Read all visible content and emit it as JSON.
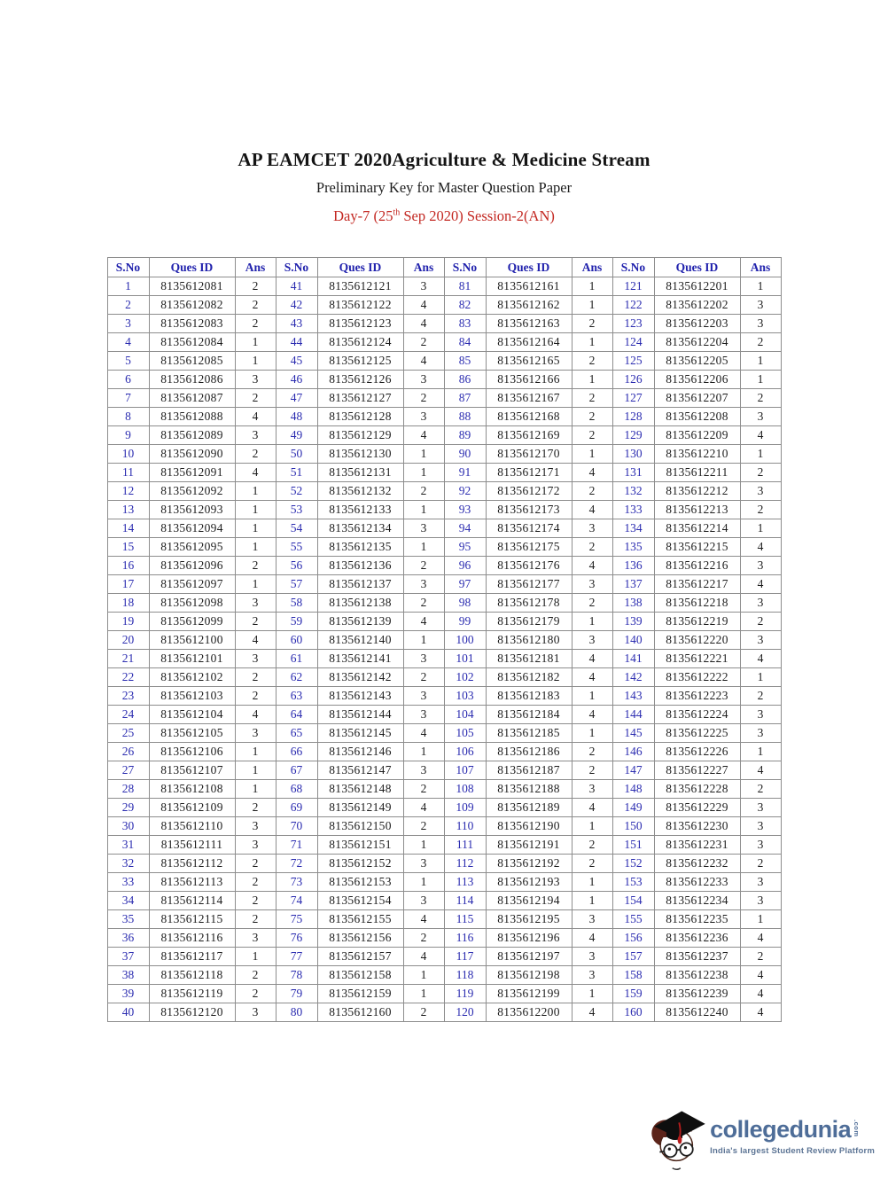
{
  "header": {
    "title": "AP EAMCET 2020Agriculture & Medicine Stream",
    "subtitle": "Preliminary Key for Master Question Paper",
    "session": {
      "pre": "Day-7 (25",
      "sup": "th",
      "post": " Sep 2020) Session-2(AN)"
    }
  },
  "colors": {
    "header_blue": "#2122ad",
    "sno_blue": "#2b2cb0",
    "session_red": "#c32822",
    "body_black": "#1d1d1d",
    "table_border_gray": "#8d8d8d",
    "logo_blue": "#4e6d98"
  },
  "table": {
    "headers": [
      "S.No",
      "Ques ID",
      "Ans"
    ],
    "rows": [
      [
        "1",
        "8135612081",
        "2",
        "41",
        "8135612121",
        "3",
        "81",
        "8135612161",
        "1",
        "121",
        "8135612201",
        "1"
      ],
      [
        "2",
        "8135612082",
        "2",
        "42",
        "8135612122",
        "4",
        "82",
        "8135612162",
        "1",
        "122",
        "8135612202",
        "3"
      ],
      [
        "3",
        "8135612083",
        "2",
        "43",
        "8135612123",
        "4",
        "83",
        "8135612163",
        "2",
        "123",
        "8135612203",
        "3"
      ],
      [
        "4",
        "8135612084",
        "1",
        "44",
        "8135612124",
        "2",
        "84",
        "8135612164",
        "1",
        "124",
        "8135612204",
        "2"
      ],
      [
        "5",
        "8135612085",
        "1",
        "45",
        "8135612125",
        "4",
        "85",
        "8135612165",
        "2",
        "125",
        "8135612205",
        "1"
      ],
      [
        "6",
        "8135612086",
        "3",
        "46",
        "8135612126",
        "3",
        "86",
        "8135612166",
        "1",
        "126",
        "8135612206",
        "1"
      ],
      [
        "7",
        "8135612087",
        "2",
        "47",
        "8135612127",
        "2",
        "87",
        "8135612167",
        "2",
        "127",
        "8135612207",
        "2"
      ],
      [
        "8",
        "8135612088",
        "4",
        "48",
        "8135612128",
        "3",
        "88",
        "8135612168",
        "2",
        "128",
        "8135612208",
        "3"
      ],
      [
        "9",
        "8135612089",
        "3",
        "49",
        "8135612129",
        "4",
        "89",
        "8135612169",
        "2",
        "129",
        "8135612209",
        "4"
      ],
      [
        "10",
        "8135612090",
        "2",
        "50",
        "8135612130",
        "1",
        "90",
        "8135612170",
        "1",
        "130",
        "8135612210",
        "1"
      ],
      [
        "11",
        "8135612091",
        "4",
        "51",
        "8135612131",
        "1",
        "91",
        "8135612171",
        "4",
        "131",
        "8135612211",
        "2"
      ],
      [
        "12",
        "8135612092",
        "1",
        "52",
        "8135612132",
        "2",
        "92",
        "8135612172",
        "2",
        "132",
        "8135612212",
        "3"
      ],
      [
        "13",
        "8135612093",
        "1",
        "53",
        "8135612133",
        "1",
        "93",
        "8135612173",
        "4",
        "133",
        "8135612213",
        "2"
      ],
      [
        "14",
        "8135612094",
        "1",
        "54",
        "8135612134",
        "3",
        "94",
        "8135612174",
        "3",
        "134",
        "8135612214",
        "1"
      ],
      [
        "15",
        "8135612095",
        "1",
        "55",
        "8135612135",
        "1",
        "95",
        "8135612175",
        "2",
        "135",
        "8135612215",
        "4"
      ],
      [
        "16",
        "8135612096",
        "2",
        "56",
        "8135612136",
        "2",
        "96",
        "8135612176",
        "4",
        "136",
        "8135612216",
        "3"
      ],
      [
        "17",
        "8135612097",
        "1",
        "57",
        "8135612137",
        "3",
        "97",
        "8135612177",
        "3",
        "137",
        "8135612217",
        "4"
      ],
      [
        "18",
        "8135612098",
        "3",
        "58",
        "8135612138",
        "2",
        "98",
        "8135612178",
        "2",
        "138",
        "8135612218",
        "3"
      ],
      [
        "19",
        "8135612099",
        "2",
        "59",
        "8135612139",
        "4",
        "99",
        "8135612179",
        "1",
        "139",
        "8135612219",
        "2"
      ],
      [
        "20",
        "8135612100",
        "4",
        "60",
        "8135612140",
        "1",
        "100",
        "8135612180",
        "3",
        "140",
        "8135612220",
        "3"
      ],
      [
        "21",
        "8135612101",
        "3",
        "61",
        "8135612141",
        "3",
        "101",
        "8135612181",
        "4",
        "141",
        "8135612221",
        "4"
      ],
      [
        "22",
        "8135612102",
        "2",
        "62",
        "8135612142",
        "2",
        "102",
        "8135612182",
        "4",
        "142",
        "8135612222",
        "1"
      ],
      [
        "23",
        "8135612103",
        "2",
        "63",
        "8135612143",
        "3",
        "103",
        "8135612183",
        "1",
        "143",
        "8135612223",
        "2"
      ],
      [
        "24",
        "8135612104",
        "4",
        "64",
        "8135612144",
        "3",
        "104",
        "8135612184",
        "4",
        "144",
        "8135612224",
        "3"
      ],
      [
        "25",
        "8135612105",
        "3",
        "65",
        "8135612145",
        "4",
        "105",
        "8135612185",
        "1",
        "145",
        "8135612225",
        "3"
      ],
      [
        "26",
        "8135612106",
        "1",
        "66",
        "8135612146",
        "1",
        "106",
        "8135612186",
        "2",
        "146",
        "8135612226",
        "1"
      ],
      [
        "27",
        "8135612107",
        "1",
        "67",
        "8135612147",
        "3",
        "107",
        "8135612187",
        "2",
        "147",
        "8135612227",
        "4"
      ],
      [
        "28",
        "8135612108",
        "1",
        "68",
        "8135612148",
        "2",
        "108",
        "8135612188",
        "3",
        "148",
        "8135612228",
        "2"
      ],
      [
        "29",
        "8135612109",
        "2",
        "69",
        "8135612149",
        "4",
        "109",
        "8135612189",
        "4",
        "149",
        "8135612229",
        "3"
      ],
      [
        "30",
        "8135612110",
        "3",
        "70",
        "8135612150",
        "2",
        "110",
        "8135612190",
        "1",
        "150",
        "8135612230",
        "3"
      ],
      [
        "31",
        "8135612111",
        "3",
        "71",
        "8135612151",
        "1",
        "111",
        "8135612191",
        "2",
        "151",
        "8135612231",
        "3"
      ],
      [
        "32",
        "8135612112",
        "2",
        "72",
        "8135612152",
        "3",
        "112",
        "8135612192",
        "2",
        "152",
        "8135612232",
        "2"
      ],
      [
        "33",
        "8135612113",
        "2",
        "73",
        "8135612153",
        "1",
        "113",
        "8135612193",
        "1",
        "153",
        "8135612233",
        "3"
      ],
      [
        "34",
        "8135612114",
        "2",
        "74",
        "8135612154",
        "3",
        "114",
        "8135612194",
        "1",
        "154",
        "8135612234",
        "3"
      ],
      [
        "35",
        "8135612115",
        "2",
        "75",
        "8135612155",
        "4",
        "115",
        "8135612195",
        "3",
        "155",
        "8135612235",
        "1"
      ],
      [
        "36",
        "8135612116",
        "3",
        "76",
        "8135612156",
        "2",
        "116",
        "8135612196",
        "4",
        "156",
        "8135612236",
        "4"
      ],
      [
        "37",
        "8135612117",
        "1",
        "77",
        "8135612157",
        "4",
        "117",
        "8135612197",
        "3",
        "157",
        "8135612237",
        "2"
      ],
      [
        "38",
        "8135612118",
        "2",
        "78",
        "8135612158",
        "1",
        "118",
        "8135612198",
        "3",
        "158",
        "8135612238",
        "4"
      ],
      [
        "39",
        "8135612119",
        "2",
        "79",
        "8135612159",
        "1",
        "119",
        "8135612199",
        "1",
        "159",
        "8135612239",
        "4"
      ],
      [
        "40",
        "8135612120",
        "3",
        "80",
        "8135612160",
        "2",
        "120",
        "8135612200",
        "4",
        "160",
        "8135612240",
        "4"
      ]
    ]
  },
  "logo": {
    "brand": "collegedunia",
    "suffix": ".com",
    "tagline": "India's largest Student Review Platform"
  }
}
